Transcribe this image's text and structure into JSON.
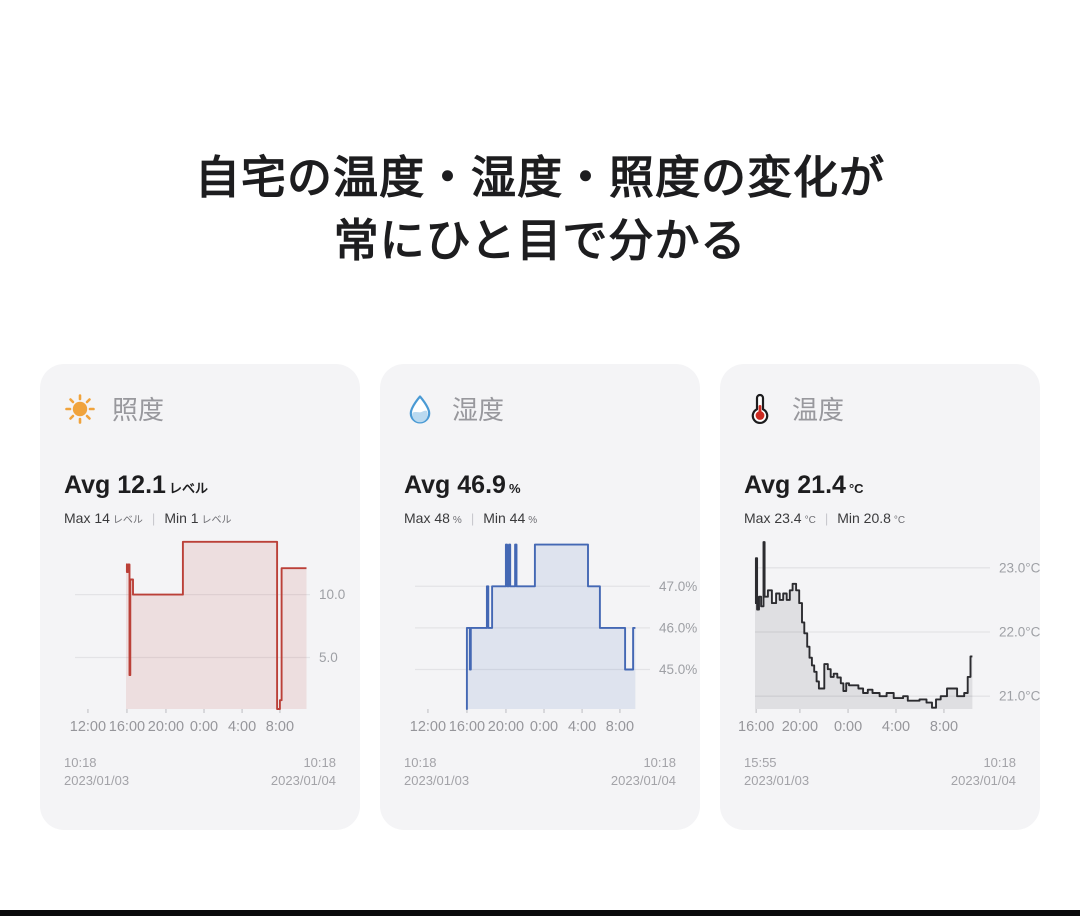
{
  "page": {
    "title_line1": "自宅の温度・湿度・照度の変化が",
    "title_line2": "常にひと目で分かる"
  },
  "style": {
    "card_bg": "#f4f4f6",
    "grid_color": "#e3e3e6",
    "tick_color": "#c9c9cd",
    "axis_label_color": "#96969b",
    "y_label_color": "#9ea0a5",
    "sun_color": "#f0a33c",
    "drop_stroke": "#4a9ad4",
    "drop_fill": "#cfe6f7",
    "thermo_stroke": "#1c1c1e",
    "thermo_red": "#cc2b22"
  },
  "cards": [
    {
      "icon": "sun-icon",
      "label": "照度",
      "avg_label": "Avg",
      "avg_value": "12.1",
      "avg_unit": "レベル",
      "max_label": "Max 14",
      "max_unit": "レベル",
      "sep": "|",
      "min_label": "Min 1",
      "min_unit": "レベル",
      "footer_left_time": "10:18",
      "footer_left_date": "2023/01/03",
      "footer_right_time": "10:18",
      "footer_right_date": "2023/01/04"
    },
    {
      "icon": "droplet-icon",
      "label": "湿度",
      "avg_label": "Avg",
      "avg_value": "46.9",
      "avg_unit": "%",
      "max_label": "Max 48",
      "max_unit": "%",
      "sep": "|",
      "min_label": "Min 44",
      "min_unit": "%",
      "footer_left_time": "10:18",
      "footer_left_date": "2023/01/03",
      "footer_right_time": "10:18",
      "footer_right_date": "2023/01/04"
    },
    {
      "icon": "thermometer-icon",
      "label": "温度",
      "avg_label": "Avg",
      "avg_value": "21.4",
      "avg_unit": "°C",
      "max_label": "Max 23.4",
      "max_unit": "°C",
      "sep": "|",
      "min_label": "Min 20.8",
      "min_unit": "°C",
      "footer_left_time": "15:55",
      "footer_left_date": "2023/01/03",
      "footer_right_time": "10:18",
      "footer_right_date": "2023/01/04"
    }
  ],
  "chart_data": [
    {
      "type": "area",
      "title": "照度 (illuminance level, 24h step chart)",
      "line_color": "#bb4038",
      "fill_color": "rgba(187,64,56,0.12)",
      "ymin": 0.9,
      "ymax": 15.3,
      "gridlines": [
        {
          "value": 10,
          "label": "10.0"
        },
        {
          "value": 5,
          "label": "5.0"
        }
      ],
      "x_ticks": [
        {
          "pos": 0.055,
          "label": "12:00"
        },
        {
          "pos": 0.221,
          "label": "16:00"
        },
        {
          "pos": 0.387,
          "label": "20:00"
        },
        {
          "pos": 0.549,
          "label": "0:00"
        },
        {
          "pos": 0.711,
          "label": "4:00"
        },
        {
          "pos": 0.872,
          "label": "8:00"
        }
      ],
      "points": [
        [
          0.217,
          12.4
        ],
        [
          0.221,
          11.8
        ],
        [
          0.225,
          12.4
        ],
        [
          0.232,
          3.6
        ],
        [
          0.2355,
          11.2
        ],
        [
          0.247,
          10.0
        ],
        [
          0.459,
          14.2
        ],
        [
          0.86,
          0.9
        ],
        [
          0.872,
          1.6
        ],
        [
          0.879,
          12.1
        ],
        [
          0.985,
          12.1
        ]
      ]
    },
    {
      "type": "area",
      "title": "湿度 (relative humidity %, 24h step chart)",
      "line_color": "#4468b4",
      "fill_color": "rgba(68,104,180,0.12)",
      "ymin": 44.05,
      "ymax": 48.4,
      "gridlines": [
        {
          "value": 47,
          "label": "47.0%"
        },
        {
          "value": 46,
          "label": "46.0%"
        },
        {
          "value": 45,
          "label": "45.0%"
        }
      ],
      "x_ticks": [
        {
          "pos": 0.055,
          "label": "12:00"
        },
        {
          "pos": 0.221,
          "label": "16:00"
        },
        {
          "pos": 0.387,
          "label": "20:00"
        },
        {
          "pos": 0.549,
          "label": "0:00"
        },
        {
          "pos": 0.711,
          "label": "4:00"
        },
        {
          "pos": 0.872,
          "label": "8:00"
        }
      ],
      "points": [
        [
          0.218,
          44.05
        ],
        [
          0.221,
          46.0
        ],
        [
          0.2335,
          45.0
        ],
        [
          0.2375,
          46.0
        ],
        [
          0.306,
          47.0
        ],
        [
          0.312,
          46.0
        ],
        [
          0.328,
          47.0
        ],
        [
          0.387,
          48.0
        ],
        [
          0.392,
          47.0
        ],
        [
          0.4,
          48.0
        ],
        [
          0.405,
          47.0
        ],
        [
          0.426,
          48.0
        ],
        [
          0.432,
          47.0
        ],
        [
          0.51,
          48.0
        ],
        [
          0.736,
          47.0
        ],
        [
          0.787,
          46.0
        ],
        [
          0.894,
          45.0
        ],
        [
          0.928,
          46.0
        ],
        [
          0.938,
          46.0
        ]
      ]
    },
    {
      "type": "area",
      "title": "温度 (temperature °C, step chart 15:55→10:18)",
      "line_color": "#2c2c30",
      "fill_color": "rgba(44,44,48,0.10)",
      "ymin": 20.8,
      "ymax": 23.62,
      "gridlines": [
        {
          "value": 23,
          "label": "23.0°C"
        },
        {
          "value": 22,
          "label": "22.0°C"
        },
        {
          "value": 21,
          "label": "21.0°C"
        }
      ],
      "x_ticks": [
        {
          "pos": 0.005,
          "label": "16:00"
        },
        {
          "pos": 0.191,
          "label": "20:00"
        },
        {
          "pos": 0.396,
          "label": "0:00"
        },
        {
          "pos": 0.6,
          "label": "4:00"
        },
        {
          "pos": 0.804,
          "label": "8:00"
        }
      ],
      "points": [
        [
          0.0,
          22.45
        ],
        [
          0.004,
          23.15
        ],
        [
          0.009,
          22.35
        ],
        [
          0.017,
          22.55
        ],
        [
          0.026,
          22.4
        ],
        [
          0.036,
          23.4
        ],
        [
          0.041,
          22.55
        ],
        [
          0.055,
          22.65
        ],
        [
          0.072,
          22.45
        ],
        [
          0.09,
          22.6
        ],
        [
          0.105,
          22.5
        ],
        [
          0.12,
          22.6
        ],
        [
          0.135,
          22.5
        ],
        [
          0.148,
          22.65
        ],
        [
          0.16,
          22.75
        ],
        [
          0.175,
          22.65
        ],
        [
          0.188,
          22.45
        ],
        [
          0.2,
          22.15
        ],
        [
          0.21,
          21.98
        ],
        [
          0.222,
          21.77
        ],
        [
          0.232,
          21.6
        ],
        [
          0.242,
          21.48
        ],
        [
          0.252,
          21.38
        ],
        [
          0.262,
          21.23
        ],
        [
          0.272,
          21.12
        ],
        [
          0.295,
          21.5
        ],
        [
          0.31,
          21.42
        ],
        [
          0.322,
          21.3
        ],
        [
          0.335,
          21.35
        ],
        [
          0.35,
          21.29
        ],
        [
          0.365,
          21.2
        ],
        [
          0.376,
          21.08
        ],
        [
          0.388,
          21.2
        ],
        [
          0.4,
          21.17
        ],
        [
          0.44,
          21.12
        ],
        [
          0.46,
          21.05
        ],
        [
          0.48,
          21.1
        ],
        [
          0.5,
          21.05
        ],
        [
          0.53,
          21.0
        ],
        [
          0.56,
          21.05
        ],
        [
          0.59,
          20.97
        ],
        [
          0.63,
          21.0
        ],
        [
          0.65,
          20.93
        ],
        [
          0.7,
          20.95
        ],
        [
          0.73,
          20.9
        ],
        [
          0.753,
          20.82
        ],
        [
          0.77,
          20.95
        ],
        [
          0.79,
          21.0
        ],
        [
          0.817,
          21.12
        ],
        [
          0.86,
          21.0
        ],
        [
          0.89,
          21.05
        ],
        [
          0.905,
          21.3
        ],
        [
          0.917,
          21.62
        ],
        [
          0.925,
          21.62
        ]
      ]
    }
  ]
}
